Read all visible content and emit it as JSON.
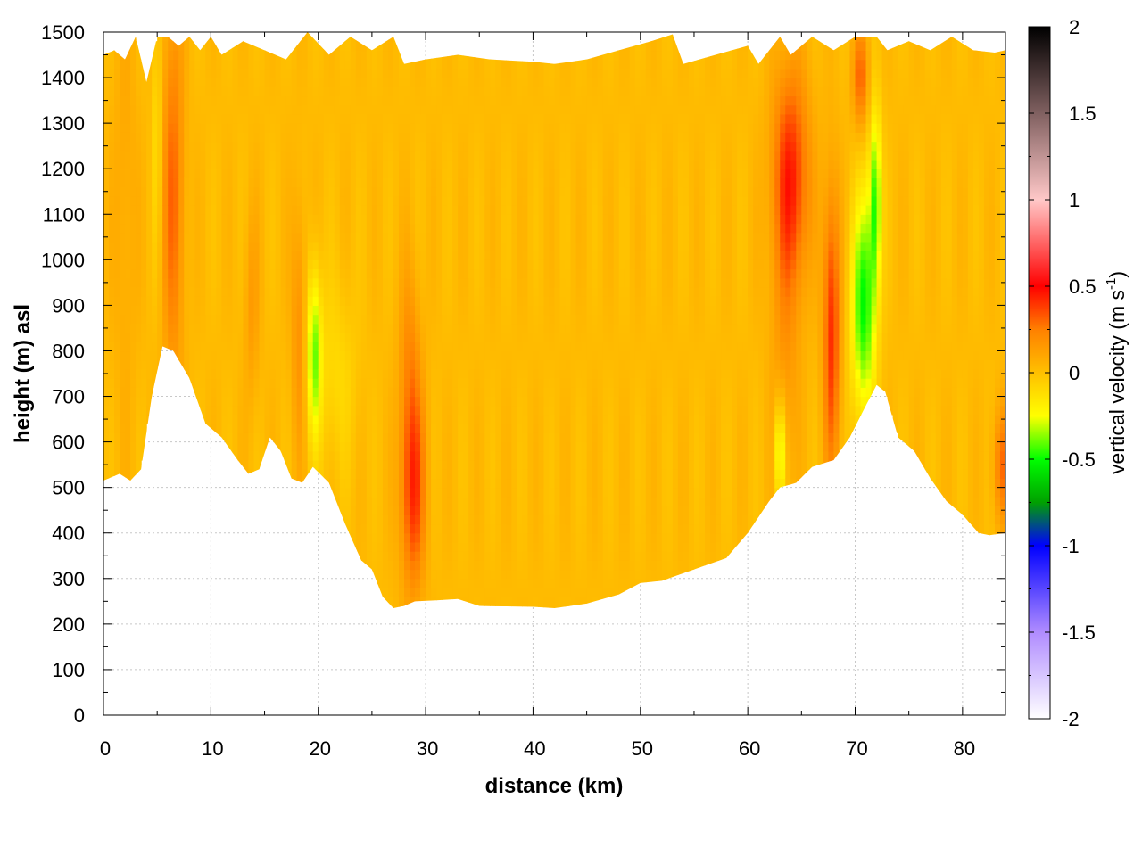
{
  "chart_data": {
    "type": "heatmap",
    "title": "",
    "xlabel": "distance (km)",
    "ylabel": "height (m) asl",
    "xlim": [
      0,
      84
    ],
    "ylim": [
      0,
      1500
    ],
    "x_ticks": [
      "0",
      "10",
      "20",
      "30",
      "40",
      "50",
      "60",
      "70",
      "80"
    ],
    "y_ticks": [
      "0",
      "100",
      "200",
      "300",
      "400",
      "500",
      "600",
      "700",
      "800",
      "900",
      "1000",
      "1100",
      "1200",
      "1300",
      "1400",
      "1500"
    ],
    "grid": true,
    "colorbar": {
      "label_main": "vertical velocity (m s",
      "label_sup": "-1",
      "label_close": ")",
      "range": [
        -2,
        2
      ],
      "ticks": [
        "2",
        "1.5",
        "1",
        "0.5",
        "0",
        "-0.5",
        "-1",
        "-1.5",
        "-2"
      ],
      "stops": [
        {
          "v": -2.0,
          "color": "#ffffff"
        },
        {
          "v": -1.5,
          "color": "#b08cff"
        },
        {
          "v": -1.0,
          "color": "#0000ff"
        },
        {
          "v": -0.75,
          "color": "#00a000"
        },
        {
          "v": -0.5,
          "color": "#00ff00"
        },
        {
          "v": -0.25,
          "color": "#ffff00"
        },
        {
          "v": 0.0,
          "color": "#ffc000"
        },
        {
          "v": 0.25,
          "color": "#ff8000"
        },
        {
          "v": 0.5,
          "color": "#ff0000"
        },
        {
          "v": 1.0,
          "color": "#ffc8c8"
        },
        {
          "v": 1.5,
          "color": "#806060"
        },
        {
          "v": 2.0,
          "color": "#000000"
        }
      ]
    },
    "background_w": 0.02,
    "terrain_bottom": [
      [
        0,
        515
      ],
      [
        1.5,
        530
      ],
      [
        2.5,
        515
      ],
      [
        3.5,
        540
      ],
      [
        4.5,
        700
      ],
      [
        5.5,
        810
      ],
      [
        6.5,
        800
      ],
      [
        8,
        740
      ],
      [
        9.5,
        640
      ],
      [
        11,
        610
      ],
      [
        12.5,
        560
      ],
      [
        13.5,
        530
      ],
      [
        14.5,
        540
      ],
      [
        15.5,
        610
      ],
      [
        16.5,
        580
      ],
      [
        17.5,
        520
      ],
      [
        18.5,
        510
      ],
      [
        19.5,
        545
      ],
      [
        21,
        510
      ],
      [
        22.5,
        420
      ],
      [
        24,
        340
      ],
      [
        25,
        320
      ],
      [
        26,
        260
      ],
      [
        27,
        235
      ],
      [
        28,
        240
      ],
      [
        29,
        250
      ],
      [
        31,
        252
      ],
      [
        33,
        255
      ],
      [
        35,
        240
      ],
      [
        40,
        238
      ],
      [
        42,
        235
      ],
      [
        45,
        245
      ],
      [
        48,
        265
      ],
      [
        50,
        290
      ],
      [
        52,
        295
      ],
      [
        55,
        320
      ],
      [
        58,
        345
      ],
      [
        60,
        400
      ],
      [
        62,
        470
      ],
      [
        63,
        500
      ],
      [
        64.5,
        510
      ],
      [
        66,
        545
      ],
      [
        68,
        560
      ],
      [
        69.5,
        610
      ],
      [
        71,
        680
      ],
      [
        72,
        725
      ],
      [
        72.8,
        710
      ],
      [
        74,
        610
      ],
      [
        75.5,
        580
      ],
      [
        77,
        520
      ],
      [
        78.5,
        470
      ],
      [
        80,
        440
      ],
      [
        81.5,
        400
      ],
      [
        82.5,
        395
      ],
      [
        84,
        400
      ]
    ],
    "terrain_top": [
      [
        0,
        1450
      ],
      [
        1,
        1460
      ],
      [
        2,
        1440
      ],
      [
        3,
        1490
      ],
      [
        4,
        1390
      ],
      [
        5,
        1490
      ],
      [
        6,
        1490
      ],
      [
        7,
        1470
      ],
      [
        8,
        1490
      ],
      [
        9,
        1460
      ],
      [
        10,
        1490
      ],
      [
        11,
        1450
      ],
      [
        13,
        1480
      ],
      [
        15,
        1460
      ],
      [
        17,
        1440
      ],
      [
        19,
        1500
      ],
      [
        21,
        1450
      ],
      [
        23,
        1490
      ],
      [
        25,
        1460
      ],
      [
        27,
        1490
      ],
      [
        28,
        1430
      ],
      [
        30,
        1440
      ],
      [
        33,
        1450
      ],
      [
        36,
        1440
      ],
      [
        40,
        1435
      ],
      [
        42,
        1430
      ],
      [
        45,
        1440
      ],
      [
        48,
        1460
      ],
      [
        51,
        1480
      ],
      [
        53,
        1495
      ],
      [
        54,
        1430
      ],
      [
        57,
        1450
      ],
      [
        60,
        1470
      ],
      [
        61,
        1430
      ],
      [
        63,
        1490
      ],
      [
        64,
        1450
      ],
      [
        66,
        1490
      ],
      [
        68,
        1460
      ],
      [
        70,
        1490
      ],
      [
        72,
        1490
      ],
      [
        73,
        1460
      ],
      [
        75,
        1480
      ],
      [
        77,
        1460
      ],
      [
        79,
        1490
      ],
      [
        81,
        1460
      ],
      [
        83,
        1455
      ],
      [
        84,
        1460
      ]
    ],
    "features": [
      {
        "x": 6.5,
        "y": 1150,
        "sx": 0.7,
        "sy": 300,
        "w": 0.28
      },
      {
        "x": 2.0,
        "y": 1150,
        "sx": 0.8,
        "sy": 350,
        "w": 0.08
      },
      {
        "x": 5.0,
        "y": 1300,
        "sx": 0.3,
        "sy": 200,
        "w": -0.15
      },
      {
        "x": 13.8,
        "y": 900,
        "sx": 0.5,
        "sy": 150,
        "w": 0.12
      },
      {
        "x": 18.2,
        "y": 850,
        "sx": 0.5,
        "sy": 200,
        "w": 0.17
      },
      {
        "x": 19.6,
        "y": 800,
        "sx": 0.45,
        "sy": 130,
        "w": -0.38
      },
      {
        "x": 21.5,
        "y": 750,
        "sx": 1.5,
        "sy": 150,
        "w": -0.12
      },
      {
        "x": 28.8,
        "y": 500,
        "sx": 0.8,
        "sy": 160,
        "w": 0.4
      },
      {
        "x": 28.5,
        "y": 800,
        "sx": 0.7,
        "sy": 150,
        "w": 0.15
      },
      {
        "x": 64.0,
        "y": 1180,
        "sx": 1.2,
        "sy": 170,
        "w": 0.42
      },
      {
        "x": 63.5,
        "y": 800,
        "sx": 1.0,
        "sy": 200,
        "w": 0.12
      },
      {
        "x": 63.0,
        "y": 580,
        "sx": 0.3,
        "sy": 80,
        "w": -0.38
      },
      {
        "x": 67.8,
        "y": 850,
        "sx": 0.55,
        "sy": 220,
        "w": 0.4
      },
      {
        "x": 70.5,
        "y": 1400,
        "sx": 0.5,
        "sy": 80,
        "w": 0.3
      },
      {
        "x": 70.8,
        "y": 900,
        "sx": 0.8,
        "sy": 170,
        "w": -0.52
      },
      {
        "x": 71.9,
        "y": 1140,
        "sx": 0.4,
        "sy": 140,
        "w": -0.45
      },
      {
        "x": 83.7,
        "y": 550,
        "sx": 0.6,
        "sy": 90,
        "w": 0.25
      }
    ]
  }
}
